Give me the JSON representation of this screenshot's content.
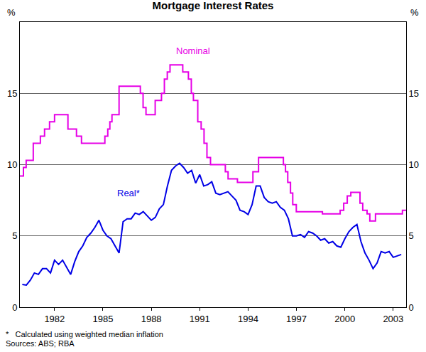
{
  "chart_data": {
    "type": "line",
    "title": "Mortgage Interest Rates",
    "y_label": "%",
    "y2_label": "%",
    "footnotes": [
      "*   Calculated using weighted median inflation",
      "Sources: ABS; RBA"
    ],
    "xlim": [
      1979.85,
      2003.8
    ],
    "xticks": [
      1982,
      1985,
      1988,
      1991,
      1994,
      1997,
      2000,
      2003
    ],
    "ylim": [
      0,
      20
    ],
    "yticks": [
      0,
      5,
      10,
      15
    ],
    "y2lim": [
      0,
      20
    ],
    "y2ticks": [
      0,
      5,
      10,
      15
    ],
    "grid": true,
    "series": [
      {
        "name": "Nominal",
        "color": "#e600e6",
        "line_style": "step",
        "x": [
          1979.85,
          1980.07,
          1980.24,
          1980.68,
          1981.12,
          1981.38,
          1981.69,
          1982.0,
          1982.83,
          1983.36,
          1983.67,
          1985.12,
          1985.3,
          1985.43,
          1985.56,
          1986.0,
          1987.32,
          1987.49,
          1987.67,
          1988.24,
          1988.63,
          1988.81,
          1988.99,
          1989.16,
          1989.95,
          1990.3,
          1990.48,
          1990.61,
          1990.88,
          1991.09,
          1991.27,
          1991.45,
          1991.67,
          1992.59,
          1992.76,
          1993.34,
          1994.3,
          1994.65,
          1996.19,
          1996.32,
          1996.46,
          1996.63,
          1996.77,
          1996.99,
          1998.61,
          1999.71,
          1999.93,
          2000.15,
          2000.37,
          2000.94,
          2001.11,
          2001.38,
          2001.55,
          2001.9,
          2003.57,
          2003.8
        ],
        "values": [
          9.2,
          9.8,
          10.3,
          11.5,
          12.0,
          12.5,
          13.0,
          13.5,
          12.5,
          12.0,
          11.5,
          12.0,
          12.5,
          13.0,
          13.5,
          15.5,
          15.0,
          14.0,
          13.5,
          14.5,
          15.0,
          16.0,
          16.5,
          17.0,
          16.5,
          16.0,
          15.0,
          14.5,
          13.0,
          12.5,
          11.5,
          10.5,
          10.0,
          9.5,
          9.0,
          8.75,
          9.5,
          10.5,
          10.0,
          9.5,
          8.75,
          8.0,
          7.2,
          6.7,
          6.55,
          6.8,
          7.3,
          7.8,
          8.05,
          7.3,
          6.8,
          6.55,
          6.05,
          6.55,
          6.8,
          6.8
        ]
      },
      {
        "name": "Real*",
        "color": "#0000e6",
        "line_style": "solid",
        "axis": "y2",
        "x": [
          1980.0,
          1980.25,
          1980.5,
          1980.75,
          1981.0,
          1981.25,
          1981.5,
          1981.75,
          1982.0,
          1982.25,
          1982.5,
          1982.75,
          1983.0,
          1983.25,
          1983.5,
          1983.75,
          1984.0,
          1984.25,
          1984.5,
          1984.75,
          1985.0,
          1985.25,
          1985.5,
          1985.75,
          1986.0,
          1986.25,
          1986.5,
          1986.75,
          1987.0,
          1987.25,
          1987.5,
          1987.75,
          1988.0,
          1988.25,
          1988.5,
          1988.75,
          1989.0,
          1989.25,
          1989.5,
          1989.75,
          1990.0,
          1990.25,
          1990.5,
          1990.75,
          1991.0,
          1991.25,
          1991.5,
          1991.75,
          1992.0,
          1992.25,
          1992.5,
          1992.75,
          1993.0,
          1993.25,
          1993.5,
          1993.75,
          1994.0,
          1994.25,
          1994.5,
          1994.75,
          1995.0,
          1995.25,
          1995.5,
          1995.75,
          1996.0,
          1996.25,
          1996.5,
          1996.75,
          1997.0,
          1997.25,
          1997.5,
          1997.75,
          1998.0,
          1998.25,
          1998.5,
          1998.75,
          1999.0,
          1999.25,
          1999.5,
          1999.75,
          2000.0,
          2000.25,
          2000.5,
          2000.75,
          2001.0,
          2001.25,
          2001.5,
          2001.75,
          2002.0,
          2002.25,
          2002.5,
          2002.75,
          2003.0,
          2003.25,
          2003.5
        ],
        "values": [
          1.6,
          1.55,
          1.9,
          2.4,
          2.3,
          2.7,
          2.7,
          2.4,
          3.3,
          3.0,
          3.3,
          2.8,
          2.3,
          3.2,
          3.9,
          4.3,
          4.9,
          5.2,
          5.6,
          6.1,
          5.4,
          5.0,
          4.8,
          4.3,
          3.8,
          6.0,
          6.2,
          6.2,
          6.6,
          6.5,
          6.7,
          6.4,
          6.1,
          6.3,
          6.9,
          7.2,
          8.5,
          9.6,
          9.9,
          10.1,
          9.8,
          9.4,
          9.6,
          8.7,
          9.3,
          8.5,
          8.6,
          8.8,
          8.0,
          7.9,
          8.0,
          8.1,
          7.8,
          7.5,
          6.8,
          6.7,
          6.5,
          7.2,
          8.5,
          8.5,
          7.7,
          7.4,
          7.3,
          7.4,
          7.0,
          6.8,
          6.2,
          5.0,
          5.0,
          5.1,
          4.9,
          5.3,
          5.2,
          5.0,
          4.7,
          4.8,
          4.5,
          4.6,
          4.3,
          4.2,
          4.8,
          5.3,
          5.6,
          5.8,
          4.6,
          3.8,
          3.3,
          2.7,
          3.1,
          3.9,
          3.8,
          3.9,
          3.5,
          3.6,
          3.7
        ]
      }
    ]
  }
}
